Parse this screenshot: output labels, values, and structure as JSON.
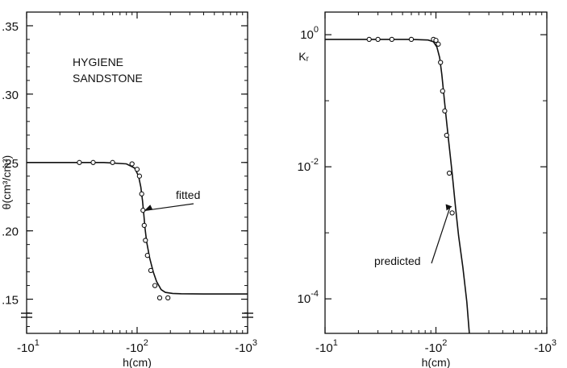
{
  "chart_data": [
    {
      "type": "line",
      "x_scale": "log-negative",
      "xlim": [
        -10,
        -1000
      ],
      "ylim": [
        0.125,
        0.36
      ],
      "xlabel": "h(cm)",
      "ylabel": "θ(cm³/cm³)",
      "x_ticks": [
        {
          "value": -10,
          "label": "-10",
          "sup": "1"
        },
        {
          "value": -100,
          "label": "-10",
          "sup": "2"
        },
        {
          "value": -1000,
          "label": "-10",
          "sup": "3"
        }
      ],
      "y_ticks": [
        {
          "value": 0.15,
          "label": ".15"
        },
        {
          "value": 0.2,
          "label": ".20"
        },
        {
          "value": 0.25,
          "label": ".25"
        },
        {
          "value": 0.3,
          "label": ".30"
        },
        {
          "value": 0.35,
          "label": ".35"
        }
      ],
      "text": [
        "HYGIENE",
        "SANDSTONE"
      ],
      "annotation": "fitted",
      "grid": false,
      "series": [
        {
          "kind": "line",
          "x": [
            -10,
            -50,
            -80,
            -95,
            -103,
            -108,
            -112,
            -115,
            -118,
            -122,
            -130,
            -140,
            -150,
            -165,
            -180,
            -210,
            -250,
            -400,
            -1000
          ],
          "y": [
            0.25,
            0.25,
            0.249,
            0.246,
            0.24,
            0.232,
            0.222,
            0.212,
            0.202,
            0.192,
            0.18,
            0.17,
            0.163,
            0.157,
            0.155,
            0.1542,
            0.154,
            0.1538,
            0.1538
          ]
        },
        {
          "kind": "points",
          "x": [
            -30,
            -40,
            -60,
            -90,
            -100,
            -105,
            -110,
            -113,
            -116,
            -119,
            -124,
            -133,
            -145,
            -160,
            -190
          ],
          "y": [
            0.25,
            0.25,
            0.25,
            0.249,
            0.245,
            0.24,
            0.227,
            0.215,
            0.204,
            0.193,
            0.182,
            0.171,
            0.16,
            0.151,
            0.151
          ]
        }
      ]
    },
    {
      "type": "line",
      "x_scale": "log-negative",
      "y_scale": "log",
      "xlim": [
        -10,
        -1000
      ],
      "ylim": [
        3e-05,
        2.2
      ],
      "xlabel": "h(cm)",
      "ylabel": "Kᵣ",
      "x_ticks": [
        {
          "value": -10,
          "label": "-10",
          "sup": "1"
        },
        {
          "value": -100,
          "label": "-10",
          "sup": "2"
        },
        {
          "value": -1000,
          "label": "-10",
          "sup": "3"
        }
      ],
      "y_ticks": [
        {
          "value": 1,
          "label": "10",
          "sup": "0"
        },
        {
          "value": 0.01,
          "label": "10",
          "sup": "-2"
        },
        {
          "value": 0.0001,
          "label": "10",
          "sup": "-4"
        }
      ],
      "annotation": "predicted",
      "grid": false,
      "series": [
        {
          "kind": "line",
          "x": [
            -10,
            -60,
            -85,
            -95,
            -102,
            -108,
            -113,
            -118,
            -123,
            -130,
            -140,
            -150,
            -160,
            -175,
            -190,
            -200
          ],
          "y": [
            0.85,
            0.85,
            0.83,
            0.78,
            0.65,
            0.45,
            0.25,
            0.12,
            0.06,
            0.025,
            0.008,
            0.0025,
            0.0009,
            0.0003,
            9e-05,
            3e-05
          ]
        },
        {
          "kind": "points",
          "x": [
            -25,
            -30,
            -40,
            -60,
            -95,
            -100,
            -105,
            -110,
            -115,
            -120,
            -125,
            -132,
            -140
          ],
          "y": [
            0.85,
            0.85,
            0.85,
            0.85,
            0.85,
            0.82,
            0.72,
            0.38,
            0.14,
            0.07,
            0.03,
            0.008,
            0.002
          ]
        }
      ]
    }
  ]
}
